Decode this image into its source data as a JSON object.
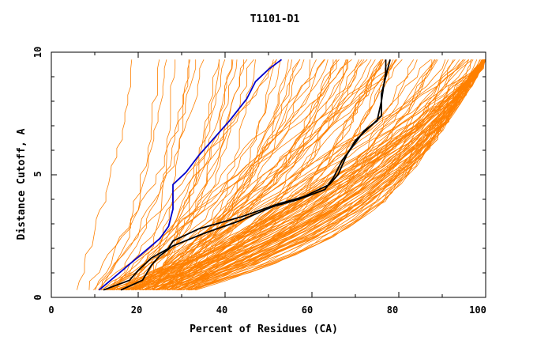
{
  "chart_data": {
    "type": "line",
    "title": "T1101-D1",
    "xlabel": "Percent of Residues (CA)",
    "ylabel": "Distance Cutoff, A",
    "xlim": [
      0,
      100
    ],
    "ylim": [
      0,
      10
    ],
    "x_ticks": [
      "0",
      "20",
      "40",
      "60",
      "80",
      "100"
    ],
    "y_ticks": [
      "0",
      "5",
      "10"
    ],
    "grid": false,
    "legend": "none",
    "colors": {
      "models": "#ff8000",
      "highlight_blue": "#0000cc",
      "highlight_black": "#000000"
    },
    "series": [
      {
        "color": "#0000cc",
        "points": [
          [
            11,
            0.3
          ],
          [
            13,
            0.6
          ],
          [
            17,
            1.2
          ],
          [
            21,
            1.8
          ],
          [
            25,
            2.4
          ],
          [
            27,
            2.9
          ],
          [
            28,
            3.6
          ],
          [
            28,
            4.6
          ],
          [
            31,
            5.1
          ],
          [
            34,
            5.8
          ],
          [
            37,
            6.4
          ],
          [
            41,
            7.2
          ],
          [
            45,
            8.1
          ],
          [
            47,
            8.8
          ],
          [
            50,
            9.3
          ],
          [
            53,
            9.7
          ]
        ]
      },
      {
        "color": "#000000",
        "points": [
          [
            12,
            0.3
          ],
          [
            18,
            0.7
          ],
          [
            20,
            1.1
          ],
          [
            23,
            1.6
          ],
          [
            27,
            2.0
          ],
          [
            28,
            2.3
          ],
          [
            34,
            2.8
          ],
          [
            44,
            3.3
          ],
          [
            52,
            3.8
          ],
          [
            58,
            4.1
          ],
          [
            64,
            4.6
          ],
          [
            66,
            5.0
          ],
          [
            68,
            5.8
          ],
          [
            70,
            6.4
          ],
          [
            73,
            6.9
          ],
          [
            76,
            7.4
          ],
          [
            76,
            8.3
          ],
          [
            77,
            9.0
          ],
          [
            78,
            9.7
          ]
        ]
      },
      {
        "color": "#000000",
        "points": [
          [
            16,
            0.3
          ],
          [
            21,
            0.7
          ],
          [
            23,
            1.3
          ],
          [
            25,
            1.7
          ],
          [
            28,
            2.1
          ],
          [
            35,
            2.6
          ],
          [
            43,
            3.1
          ],
          [
            51,
            3.7
          ],
          [
            57,
            4.0
          ],
          [
            63,
            4.4
          ],
          [
            65,
            4.9
          ],
          [
            67,
            5.6
          ],
          [
            70,
            6.3
          ],
          [
            72,
            6.8
          ],
          [
            75,
            7.2
          ],
          [
            76,
            8.0
          ],
          [
            77,
            9.2
          ],
          [
            77,
            9.7
          ]
        ]
      }
    ],
    "model_curves": {
      "color": "#ff8000",
      "count": 140,
      "x_range": [
        5,
        100
      ],
      "y_range": [
        0.3,
        9.7
      ]
    }
  }
}
